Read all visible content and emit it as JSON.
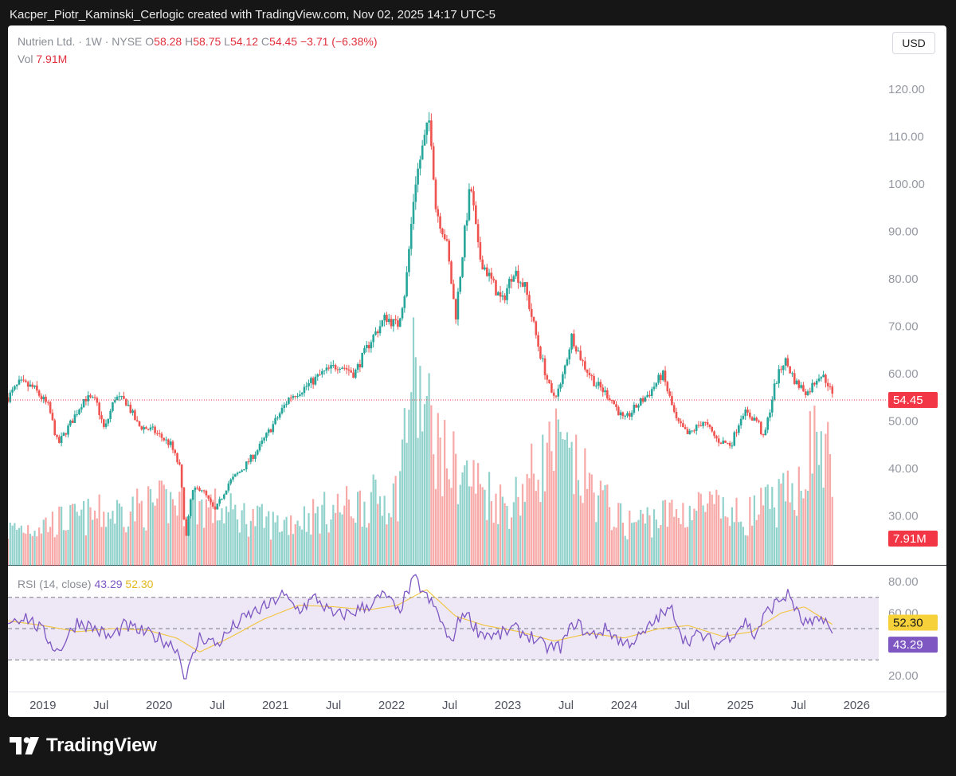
{
  "attribution": "Kacper_Piotr_Kaminski_Cerlogic created with TradingView.com, Nov 02, 2025 14:17 UTC-5",
  "legend": {
    "symbol": "Nutrien Ltd. · 1W · NYSE",
    "o_label": "O",
    "o_value": "58.28",
    "h_label": "H",
    "h_value": "58.75",
    "l_label": "L",
    "l_value": "54.12",
    "c_label": "C",
    "c_value": "54.45",
    "change": "−3.71 (−6.38%)",
    "vol_label": "Vol",
    "vol_value": "7.91M"
  },
  "currency_button": "USD",
  "rsi_legend": {
    "label": "RSI (14, close)",
    "rsi": "43.29",
    "ma": "52.30"
  },
  "brand": "TradingView",
  "colors": {
    "up": "#26a69a",
    "down": "#ef5350",
    "rsi": "#7e57c2",
    "rsi_ma": "#f2c53d",
    "band": "#ede7f6",
    "last_price": "#f23645"
  },
  "chart_data": [
    {
      "type": "candlestick",
      "interval": "1W",
      "x_axis": {
        "start": "2018-09",
        "end": "2025-12",
        "tick_labels": [
          {
            "label": "2019",
            "date": 2019.0
          },
          {
            "label": "Jul",
            "date": 2019.5
          },
          {
            "label": "2020",
            "date": 2020.0
          },
          {
            "label": "Jul",
            "date": 2020.5
          },
          {
            "label": "2021",
            "date": 2021.0
          },
          {
            "label": "Jul",
            "date": 2021.5
          },
          {
            "label": "2022",
            "date": 2022.0
          },
          {
            "label": "Jul",
            "date": 2022.5
          },
          {
            "label": "2023",
            "date": 2023.0
          },
          {
            "label": "Jul",
            "date": 2023.5
          },
          {
            "label": "2024",
            "date": 2024.0
          },
          {
            "label": "Jul",
            "date": 2024.5
          },
          {
            "label": "2025",
            "date": 2025.0
          },
          {
            "label": "Jul",
            "date": 2025.5
          },
          {
            "label": "2026",
            "date": 2026.0
          }
        ]
      },
      "y_axis": {
        "min": 18,
        "max": 122,
        "ticks": [
          "120.00",
          "110.00",
          "100.00",
          "90.00",
          "80.00",
          "70.00",
          "60.00",
          "50.00",
          "40.00",
          "30.00"
        ]
      },
      "last_price": "54.45",
      "last_volume_label": "7.91M",
      "price_path": [
        [
          2018.7,
          55
        ],
        [
          2018.8,
          58
        ],
        [
          2018.92,
          57
        ],
        [
          2019.05,
          53
        ],
        [
          2019.13,
          45
        ],
        [
          2019.25,
          50
        ],
        [
          2019.36,
          55
        ],
        [
          2019.46,
          54
        ],
        [
          2019.53,
          48
        ],
        [
          2019.62,
          55
        ],
        [
          2019.72,
          54
        ],
        [
          2019.82,
          49
        ],
        [
          2019.95,
          48
        ],
        [
          2020.1,
          45
        ],
        [
          2020.18,
          40
        ],
        [
          2020.23,
          25
        ],
        [
          2020.28,
          35
        ],
        [
          2020.36,
          36
        ],
        [
          2020.48,
          31
        ],
        [
          2020.6,
          37
        ],
        [
          2020.72,
          40
        ],
        [
          2020.85,
          44
        ],
        [
          2021.0,
          50
        ],
        [
          2021.12,
          55
        ],
        [
          2021.25,
          57
        ],
        [
          2021.4,
          60
        ],
        [
          2021.55,
          62
        ],
        [
          2021.68,
          60
        ],
        [
          2021.82,
          67
        ],
        [
          2021.95,
          72
        ],
        [
          2022.05,
          70
        ],
        [
          2022.12,
          78
        ],
        [
          2022.2,
          100
        ],
        [
          2022.27,
          108
        ],
        [
          2022.33,
          114
        ],
        [
          2022.38,
          95
        ],
        [
          2022.47,
          88
        ],
        [
          2022.55,
          72
        ],
        [
          2022.63,
          90
        ],
        [
          2022.68,
          100
        ],
        [
          2022.75,
          85
        ],
        [
          2022.85,
          80
        ],
        [
          2022.95,
          75
        ],
        [
          2023.05,
          82
        ],
        [
          2023.15,
          78
        ],
        [
          2023.27,
          65
        ],
        [
          2023.38,
          55
        ],
        [
          2023.45,
          57
        ],
        [
          2023.55,
          68
        ],
        [
          2023.65,
          62
        ],
        [
          2023.75,
          58
        ],
        [
          2023.88,
          55
        ],
        [
          2024.0,
          50
        ],
        [
          2024.1,
          53
        ],
        [
          2024.22,
          56
        ],
        [
          2024.33,
          60
        ],
        [
          2024.45,
          50
        ],
        [
          2024.55,
          47
        ],
        [
          2024.68,
          50
        ],
        [
          2024.8,
          46
        ],
        [
          2024.92,
          45
        ],
        [
          2025.02,
          52
        ],
        [
          2025.15,
          50
        ],
        [
          2025.2,
          46
        ],
        [
          2025.3,
          58
        ],
        [
          2025.38,
          63
        ],
        [
          2025.48,
          58
        ],
        [
          2025.58,
          56
        ],
        [
          2025.68,
          60
        ],
        [
          2025.75,
          58.28
        ],
        [
          2025.8,
          54.45
        ]
      ],
      "volume_path": [
        [
          2018.7,
          3
        ],
        [
          2020.2,
          5.5
        ],
        [
          2021.0,
          3.5
        ],
        [
          2022.05,
          6
        ],
        [
          2022.17,
          16
        ],
        [
          2022.45,
          9
        ],
        [
          2023.0,
          5
        ],
        [
          2023.4,
          10
        ],
        [
          2024.0,
          3.5
        ],
        [
          2024.7,
          5
        ],
        [
          2025.0,
          4
        ],
        [
          2025.45,
          6
        ],
        [
          2025.65,
          11
        ],
        [
          2025.8,
          7.91
        ]
      ]
    },
    {
      "type": "line",
      "title": "RSI (14, close)",
      "y_axis": {
        "min": 14,
        "max": 86,
        "ticks": [
          "80.00",
          "60.00",
          "40.00",
          "20.00"
        ]
      },
      "bands": [
        70,
        50,
        30
      ],
      "series": [
        {
          "name": "RSI",
          "last": 43.29,
          "values": [
            [
              2018.7,
              55
            ],
            [
              2018.85,
              58
            ],
            [
              2019.0,
              48
            ],
            [
              2019.13,
              35
            ],
            [
              2019.3,
              55
            ],
            [
              2019.45,
              50
            ],
            [
              2019.58,
              44
            ],
            [
              2019.7,
              52
            ],
            [
              2019.85,
              48
            ],
            [
              2020.0,
              44
            ],
            [
              2020.15,
              38
            ],
            [
              2020.23,
              18
            ],
            [
              2020.35,
              45
            ],
            [
              2020.5,
              40
            ],
            [
              2020.65,
              52
            ],
            [
              2020.8,
              60
            ],
            [
              2020.95,
              65
            ],
            [
              2021.05,
              72
            ],
            [
              2021.2,
              62
            ],
            [
              2021.35,
              70
            ],
            [
              2021.5,
              58
            ],
            [
              2021.65,
              60
            ],
            [
              2021.8,
              65
            ],
            [
              2021.95,
              72
            ],
            [
              2022.05,
              60
            ],
            [
              2022.13,
              72
            ],
            [
              2022.2,
              82
            ],
            [
              2022.3,
              70
            ],
            [
              2022.4,
              60
            ],
            [
              2022.5,
              40
            ],
            [
              2022.62,
              62
            ],
            [
              2022.75,
              48
            ],
            [
              2022.9,
              45
            ],
            [
              2023.05,
              50
            ],
            [
              2023.2,
              45
            ],
            [
              2023.32,
              38
            ],
            [
              2023.45,
              38
            ],
            [
              2023.58,
              55
            ],
            [
              2023.7,
              45
            ],
            [
              2023.85,
              50
            ],
            [
              2024.0,
              40
            ],
            [
              2024.15,
              45
            ],
            [
              2024.3,
              58
            ],
            [
              2024.42,
              62
            ],
            [
              2024.52,
              42
            ],
            [
              2024.65,
              46
            ],
            [
              2024.8,
              40
            ],
            [
              2024.95,
              48
            ],
            [
              2025.05,
              55
            ],
            [
              2025.12,
              45
            ],
            [
              2025.22,
              60
            ],
            [
              2025.33,
              68
            ],
            [
              2025.42,
              72
            ],
            [
              2025.52,
              55
            ],
            [
              2025.62,
              52
            ],
            [
              2025.72,
              58
            ],
            [
              2025.8,
              43.29
            ]
          ]
        },
        {
          "name": "RSI-based MA",
          "last": 52.3,
          "values": [
            [
              2018.7,
              55
            ],
            [
              2019.0,
              52
            ],
            [
              2019.3,
              48
            ],
            [
              2019.6,
              50
            ],
            [
              2019.9,
              49
            ],
            [
              2020.15,
              44
            ],
            [
              2020.35,
              35
            ],
            [
              2020.6,
              44
            ],
            [
              2020.9,
              56
            ],
            [
              2021.2,
              65
            ],
            [
              2021.5,
              64
            ],
            [
              2021.8,
              62
            ],
            [
              2022.05,
              65
            ],
            [
              2022.3,
              75
            ],
            [
              2022.55,
              58
            ],
            [
              2022.8,
              52
            ],
            [
              2023.1,
              48
            ],
            [
              2023.4,
              42
            ],
            [
              2023.7,
              47
            ],
            [
              2024.0,
              44
            ],
            [
              2024.3,
              50
            ],
            [
              2024.55,
              52
            ],
            [
              2024.85,
              45
            ],
            [
              2025.1,
              48
            ],
            [
              2025.35,
              60
            ],
            [
              2025.55,
              64
            ],
            [
              2025.8,
              52.3
            ]
          ]
        }
      ]
    }
  ]
}
